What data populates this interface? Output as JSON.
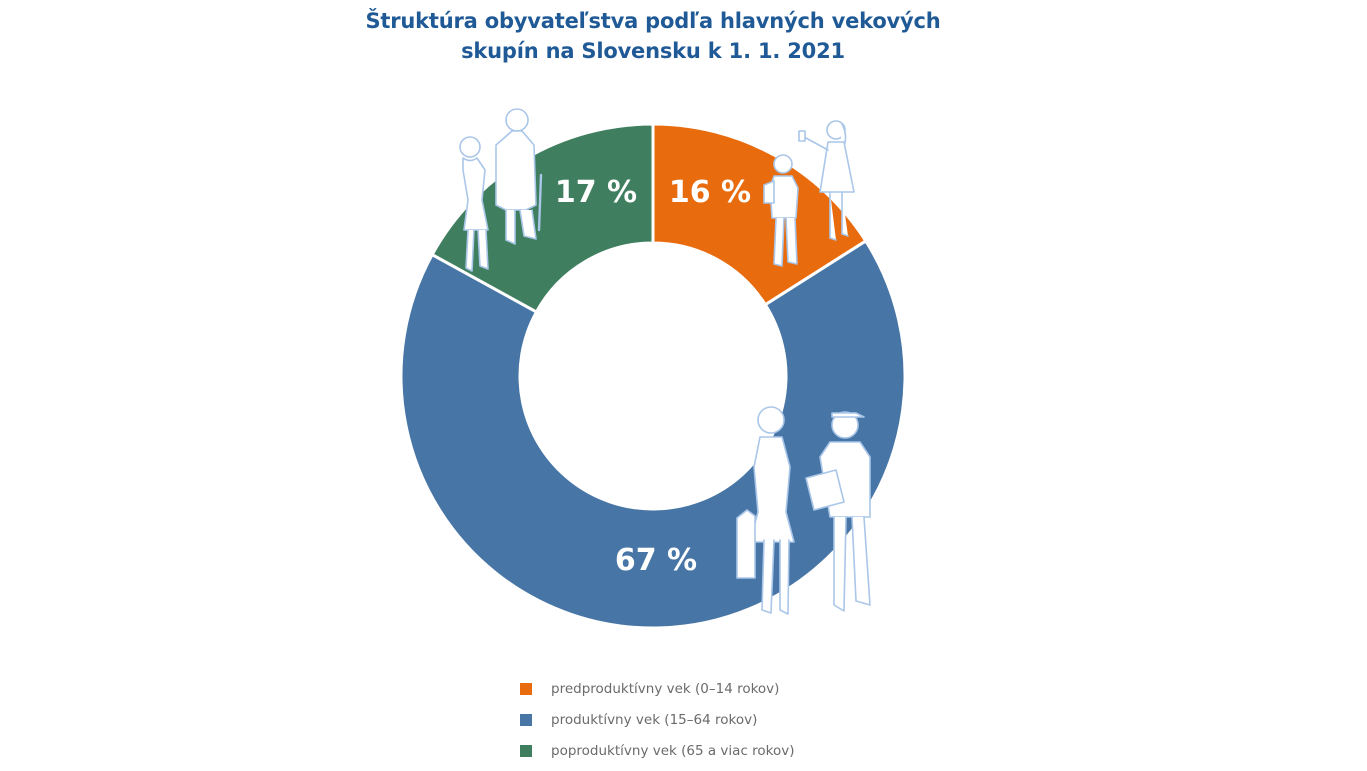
{
  "title": {
    "line1": "Štruktúra obyvateľstva podľa hlavných vekových",
    "line2": "skupín na Slovensku k 1. 1. 2021"
  },
  "chart_data": {
    "type": "pie",
    "style": "donut",
    "title": "Štruktúra obyvateľstva podľa hlavných vekových skupín na Slovensku k 1. 1. 2021",
    "start": "top, clockwise",
    "slices": [
      {
        "label": "predproduktívny vek (0–14 rokov)",
        "value": 16,
        "display": "16 %",
        "color": "#e86c0e"
      },
      {
        "label": "produktívny vek (15–64 rokov)",
        "value": 67,
        "display": "67 %",
        "color": "#4775a6"
      },
      {
        "label": "poproduktívny vek (65 a viac rokov)",
        "value": 17,
        "display": "17 %",
        "color": "#3f7f5f"
      }
    ],
    "legend_position": "bottom-center"
  },
  "illustration": {
    "stroke_color": "#aac6e8",
    "figures": [
      "child-icon",
      "teen-girl-icon",
      "elderly-woman-icon",
      "elderly-man-icon",
      "woman-phone-icon",
      "courier-icon"
    ]
  }
}
